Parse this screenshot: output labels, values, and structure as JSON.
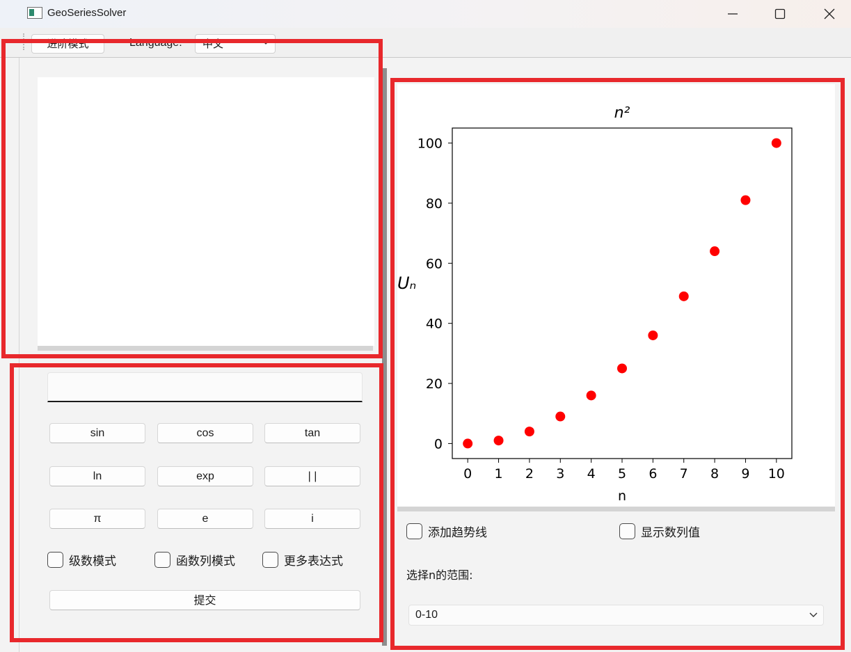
{
  "window": {
    "title": "GeoSeriesSolver",
    "app_icon": "app-window-icon",
    "controls": [
      "minimize-icon",
      "maximize-icon",
      "close-icon"
    ]
  },
  "toolbar": {
    "advanced_mode_label": "进阶模式",
    "language_label": "Language:",
    "language_value": "中文"
  },
  "input": {
    "expression_value": ""
  },
  "function_buttons": [
    [
      "sin",
      "cos",
      "tan"
    ],
    [
      "ln",
      "exp",
      "| |"
    ],
    [
      "π",
      "e",
      "i"
    ]
  ],
  "modes": {
    "series_mode": "级数模式",
    "function_sequence_mode": "函数列模式",
    "more_expressions": "更多表达式"
  },
  "submit_label": "提交",
  "chart_options": {
    "add_trendline": "添加趋势线",
    "show_values": "显示数列值",
    "range_label": "选择n的范围:",
    "range_value": "0-10"
  },
  "chart_data": {
    "type": "scatter",
    "title": "n²",
    "xlabel": "n",
    "ylabel": "Uₙ",
    "x": [
      0,
      1,
      2,
      3,
      4,
      5,
      6,
      7,
      8,
      9,
      10
    ],
    "y": [
      0,
      1,
      4,
      9,
      16,
      25,
      36,
      49,
      64,
      81,
      100
    ],
    "xlim": [
      -0.5,
      10.5
    ],
    "ylim": [
      -5,
      105
    ],
    "xticks": [
      0,
      1,
      2,
      3,
      4,
      5,
      6,
      7,
      8,
      9,
      10
    ],
    "yticks": [
      0,
      20,
      40,
      60,
      80,
      100
    ],
    "marker_color": "#ff0000",
    "grid": false
  },
  "colors": {
    "highlight": "#e8282c",
    "marker": "#ff0000"
  }
}
